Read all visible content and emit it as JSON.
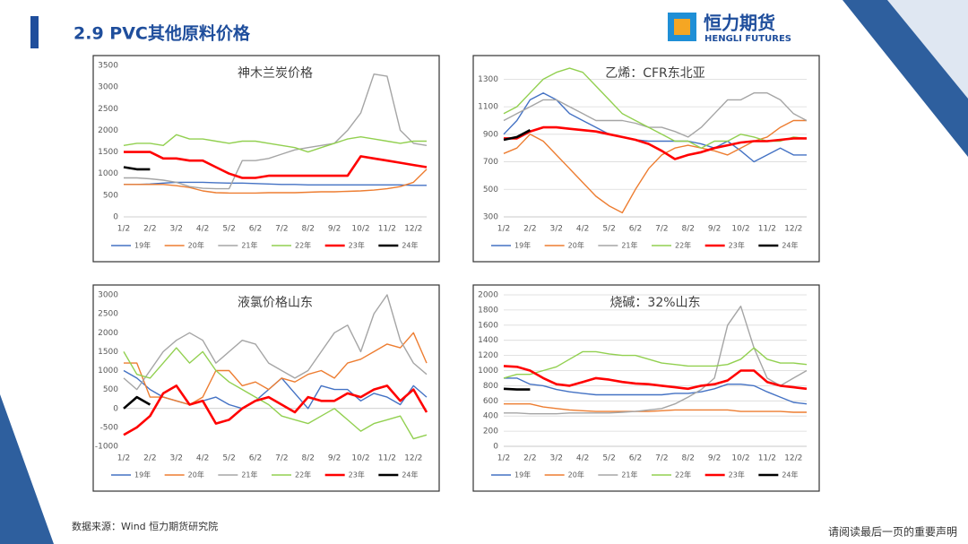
{
  "header": {
    "title": "2.9 PVC其他原料价格",
    "logo": "恒力期货",
    "logo_en": "HENGLI FUTURES"
  },
  "footer": {
    "source": "数据来源：Wind  恒力期货研究院",
    "note": "请阅读最后一页的重要声明"
  },
  "chart_data": [
    {
      "type": "line",
      "title": "神木兰炭价格",
      "grid": false,
      "categories": [
        "1/2",
        null,
        "2/2",
        null,
        "3/2",
        null,
        "4/2",
        null,
        "5/2",
        null,
        "6/2",
        null,
        "7/2",
        null,
        "8/2",
        null,
        "9/2",
        null,
        "10/2",
        null,
        "11/2",
        null,
        "12/2",
        null
      ],
      "ylim": [
        0,
        3500
      ],
      "yticks": [
        0,
        500,
        1000,
        1500,
        2000,
        2500,
        3000,
        3500
      ],
      "series": [
        {
          "name": "19年",
          "color": "#4472c4",
          "values": [
            750,
            750,
            760,
            780,
            800,
            800,
            800,
            790,
            780,
            780,
            770,
            760,
            750,
            750,
            740,
            740,
            740,
            740,
            740,
            740,
            740,
            740,
            730,
            730
          ]
        },
        {
          "name": "20年",
          "color": "#ed7d31",
          "values": [
            750,
            750,
            750,
            750,
            720,
            680,
            600,
            560,
            550,
            550,
            550,
            560,
            560,
            560,
            570,
            580,
            580,
            590,
            600,
            620,
            650,
            700,
            800,
            1100
          ]
        },
        {
          "name": "21年",
          "color": "#a5a5a5",
          "values": [
            900,
            900,
            880,
            850,
            800,
            700,
            660,
            650,
            650,
            1300,
            1300,
            1350,
            1450,
            1550,
            1600,
            1650,
            1700,
            2000,
            2400,
            3300,
            3250,
            2000,
            1700,
            1650
          ]
        },
        {
          "name": "22年",
          "color": "#92d050",
          "values": [
            1650,
            1700,
            1700,
            1650,
            1900,
            1800,
            1800,
            1750,
            1700,
            1750,
            1750,
            1700,
            1650,
            1600,
            1500,
            1600,
            1700,
            1800,
            1850,
            1800,
            1750,
            1700,
            1750,
            1750
          ]
        },
        {
          "name": "23年",
          "color": "#ff0000",
          "values": [
            1500,
            1500,
            1500,
            1350,
            1350,
            1300,
            1300,
            1150,
            1000,
            900,
            900,
            950,
            950,
            950,
            950,
            950,
            950,
            950,
            1400,
            1350,
            1300,
            1250,
            1200,
            1150
          ]
        },
        {
          "name": "24年",
          "color": "#000000",
          "values": [
            1150,
            1100,
            1100,
            null,
            null,
            null,
            null,
            null,
            null,
            null,
            null,
            null,
            null,
            null,
            null,
            null,
            null,
            null,
            null,
            null,
            null,
            null,
            null,
            null
          ]
        }
      ]
    },
    {
      "type": "line",
      "title": "乙烯：CFR东北亚",
      "grid": true,
      "categories": [
        "1/2",
        null,
        "2/2",
        null,
        "3/2",
        null,
        "4/2",
        null,
        "5/2",
        null,
        "6/2",
        null,
        "7/2",
        null,
        "8/2",
        null,
        "9/2",
        null,
        "10/2",
        null,
        "11/2",
        null,
        "12/2",
        null
      ],
      "ylim": [
        300,
        1400
      ],
      "yticks": [
        300,
        500,
        700,
        900,
        1100,
        1300
      ],
      "series": [
        {
          "name": "19年",
          "color": "#4472c4",
          "values": [
            900,
            1000,
            1150,
            1200,
            1150,
            1050,
            1000,
            950,
            900,
            880,
            860,
            850,
            850,
            850,
            850,
            830,
            800,
            850,
            780,
            700,
            750,
            800,
            750,
            750
          ]
        },
        {
          "name": "20年",
          "color": "#ed7d31",
          "values": [
            760,
            800,
            900,
            850,
            750,
            650,
            550,
            450,
            380,
            330,
            500,
            650,
            750,
            800,
            820,
            800,
            780,
            750,
            800,
            850,
            880,
            950,
            1000,
            1000
          ]
        },
        {
          "name": "21年",
          "color": "#a5a5a5",
          "values": [
            1000,
            1050,
            1100,
            1150,
            1150,
            1100,
            1050,
            1000,
            1000,
            1000,
            980,
            950,
            950,
            920,
            880,
            950,
            1050,
            1150,
            1150,
            1200,
            1200,
            1150,
            1050,
            1000
          ]
        },
        {
          "name": "22年",
          "color": "#92d050",
          "values": [
            1050,
            1100,
            1200,
            1300,
            1350,
            1380,
            1350,
            1250,
            1150,
            1050,
            1000,
            950,
            900,
            850,
            850,
            800,
            850,
            850,
            900,
            880,
            850,
            850,
            880,
            870
          ]
        },
        {
          "name": "23年",
          "color": "#ff0000",
          "values": [
            870,
            870,
            920,
            950,
            950,
            940,
            930,
            920,
            900,
            880,
            860,
            830,
            780,
            720,
            750,
            770,
            800,
            820,
            840,
            850,
            850,
            860,
            870,
            870
          ]
        },
        {
          "name": "24年",
          "color": "#000000",
          "values": [
            860,
            880,
            930,
            null,
            null,
            null,
            null,
            null,
            null,
            null,
            null,
            null,
            null,
            null,
            null,
            null,
            null,
            null,
            null,
            null,
            null,
            null,
            null,
            null
          ]
        }
      ]
    },
    {
      "type": "line",
      "title": "液氯价格山东",
      "grid": false,
      "categories": [
        "1/2",
        null,
        "2/2",
        null,
        "3/2",
        null,
        "4/2",
        null,
        "5/2",
        null,
        "6/2",
        null,
        "7/2",
        null,
        "8/2",
        null,
        "9/2",
        null,
        "10/2",
        null,
        "11/2",
        null,
        "12/2",
        null
      ],
      "ylim": [
        -1000,
        3000
      ],
      "yticks": [
        -1000,
        -500,
        0,
        500,
        1000,
        1500,
        2000,
        2500,
        3000
      ],
      "series": [
        {
          "name": "19年",
          "color": "#4472c4",
          "values": [
            1000,
            800,
            500,
            300,
            200,
            100,
            200,
            300,
            100,
            0,
            200,
            500,
            800,
            400,
            0,
            600,
            500,
            500,
            200,
            400,
            300,
            100,
            600,
            300
          ]
        },
        {
          "name": "20年",
          "color": "#ed7d31",
          "values": [
            1200,
            1200,
            300,
            300,
            200,
            100,
            300,
            1000,
            1000,
            600,
            700,
            500,
            800,
            700,
            900,
            1000,
            800,
            1200,
            1300,
            1500,
            1700,
            1600,
            2000,
            1200
          ]
        },
        {
          "name": "21年",
          "color": "#a5a5a5",
          "values": [
            800,
            500,
            1000,
            1500,
            1800,
            2000,
            1800,
            1200,
            1500,
            1800,
            1700,
            1200,
            1000,
            800,
            1000,
            1500,
            2000,
            2200,
            1500,
            2500,
            3000,
            1800,
            1200,
            900
          ]
        },
        {
          "name": "22年",
          "color": "#92d050",
          "values": [
            1500,
            900,
            800,
            1200,
            1600,
            1200,
            1500,
            1000,
            700,
            500,
            300,
            100,
            -200,
            -300,
            -400,
            -200,
            0,
            -300,
            -600,
            -400,
            -300,
            -200,
            -800,
            -700
          ]
        },
        {
          "name": "23年",
          "color": "#ff0000",
          "values": [
            -700,
            -500,
            -200,
            400,
            600,
            100,
            200,
            -400,
            -300,
            0,
            200,
            300,
            100,
            -100,
            300,
            200,
            200,
            400,
            300,
            500,
            600,
            200,
            500,
            -100
          ]
        },
        {
          "name": "24年",
          "color": "#000000",
          "values": [
            0,
            300,
            100,
            null,
            null,
            null,
            null,
            null,
            null,
            null,
            null,
            null,
            null,
            null,
            null,
            null,
            null,
            null,
            null,
            null,
            null,
            null,
            null,
            null
          ]
        }
      ]
    },
    {
      "type": "line",
      "title": "烧碱：32%山东",
      "grid": true,
      "categories": [
        "1/2",
        null,
        "2/2",
        null,
        "3/2",
        null,
        "4/2",
        null,
        "5/2",
        null,
        "6/2",
        null,
        "7/2",
        null,
        "8/2",
        null,
        "9/2",
        null,
        "10/2",
        null,
        "11/2",
        null,
        "12/2",
        null
      ],
      "ylim": [
        0,
        2000
      ],
      "yticks": [
        0,
        200,
        400,
        600,
        800,
        1000,
        1200,
        1400,
        1600,
        1800,
        2000
      ],
      "series": [
        {
          "name": "19年",
          "color": "#4472c4",
          "values": [
            900,
            900,
            820,
            800,
            750,
            720,
            700,
            680,
            680,
            680,
            680,
            680,
            680,
            700,
            700,
            720,
            760,
            820,
            820,
            800,
            720,
            650,
            580,
            560
          ]
        },
        {
          "name": "20年",
          "color": "#ed7d31",
          "values": [
            560,
            560,
            560,
            520,
            500,
            480,
            470,
            460,
            460,
            460,
            460,
            460,
            470,
            480,
            480,
            480,
            480,
            480,
            460,
            460,
            460,
            460,
            450,
            450
          ]
        },
        {
          "name": "21年",
          "color": "#a5a5a5",
          "values": [
            440,
            440,
            430,
            430,
            430,
            440,
            440,
            440,
            440,
            450,
            460,
            480,
            500,
            560,
            650,
            750,
            900,
            1600,
            1850,
            1300,
            900,
            800,
            900,
            1000
          ]
        },
        {
          "name": "22年",
          "color": "#92d050",
          "values": [
            900,
            950,
            950,
            1000,
            1050,
            1150,
            1250,
            1250,
            1220,
            1200,
            1200,
            1150,
            1100,
            1080,
            1060,
            1060,
            1060,
            1080,
            1150,
            1300,
            1150,
            1100,
            1100,
            1080
          ]
        },
        {
          "name": "23年",
          "color": "#ff0000",
          "values": [
            1060,
            1050,
            1000,
            900,
            820,
            800,
            850,
            900,
            880,
            850,
            830,
            820,
            800,
            780,
            760,
            800,
            820,
            870,
            1000,
            1000,
            850,
            800,
            780,
            760
          ]
        },
        {
          "name": "24年",
          "color": "#000000",
          "values": [
            760,
            750,
            750,
            null,
            null,
            null,
            null,
            null,
            null,
            null,
            null,
            null,
            null,
            null,
            null,
            null,
            null,
            null,
            null,
            null,
            null,
            null,
            null,
            null
          ]
        }
      ]
    }
  ]
}
